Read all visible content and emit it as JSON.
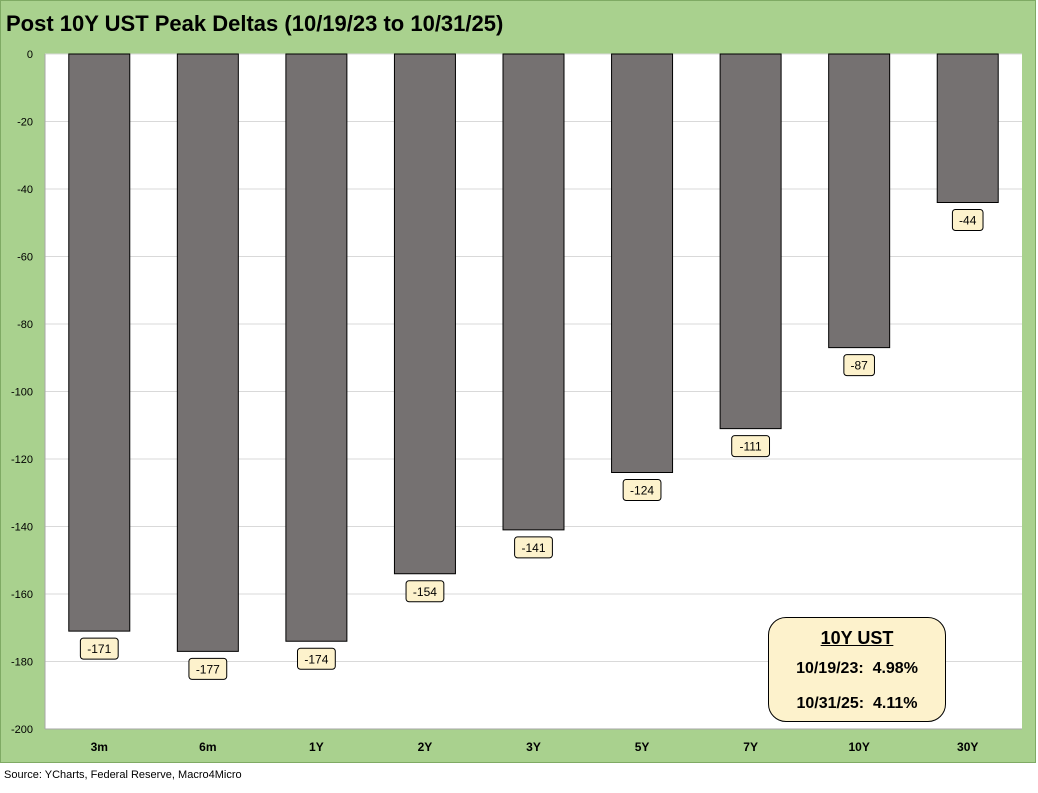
{
  "colors": {
    "frame_background": "#a9d18e",
    "plot_background": "#ffffff",
    "bar_fill": "#757171",
    "label_fill": "#fdf2cc"
  },
  "chart_data": {
    "type": "bar",
    "title": "Post 10Y UST Peak Deltas (10/19/23 to 10/31/25)",
    "categories": [
      "3m",
      "6m",
      "1Y",
      "2Y",
      "3Y",
      "5Y",
      "7Y",
      "10Y",
      "30Y"
    ],
    "values": [
      -171,
      -177,
      -174,
      -154,
      -141,
      -124,
      -111,
      -87,
      -44
    ],
    "data_labels": [
      "-171",
      "-177",
      "-174",
      "-154",
      "-141",
      "-124",
      "-111",
      "-87",
      "-44"
    ],
    "ylim": [
      -200,
      0
    ],
    "yticks": [
      "0",
      "-20",
      "-40",
      "-60",
      "-80",
      "-100",
      "-120",
      "-140",
      "-160",
      "-180",
      "-200"
    ],
    "ytick_values": [
      0,
      -20,
      -40,
      -60,
      -80,
      -100,
      -120,
      -140,
      -160,
      -180,
      -200
    ],
    "grid": true,
    "legend": "none"
  },
  "callout": {
    "title": "10Y UST",
    "line1": "10/19/23:  4.98%",
    "line2": "10/31/25:  4.11%"
  },
  "source": "Source: YCharts, Federal Reserve, Macro4Micro"
}
